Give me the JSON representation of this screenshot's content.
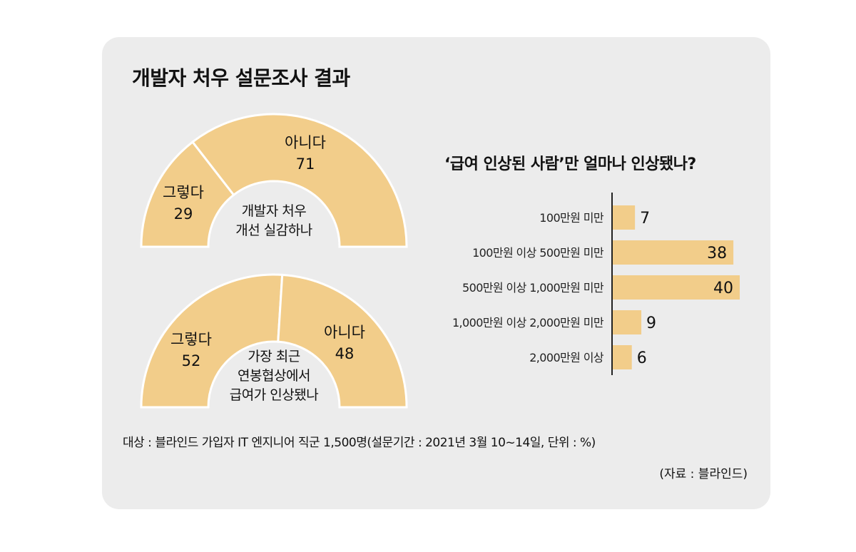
{
  "title": "개발자 처우 설문조사 결과",
  "colors": {
    "bar": "#f2cd8a",
    "panel": "#ececec",
    "axis": "#222222"
  },
  "footnote": "대상 : 블라인드 가입자 IT 엔지니어 직군 1,500명(설문기간 : 2021년 3월 10~14일, 단위 : %)",
  "source": "(자료 : 블라인드)",
  "chart_data": [
    {
      "type": "pie",
      "question_line1": "개발자 처우",
      "question_line2": "개선 실감하나",
      "slices": [
        {
          "label": "그렇다",
          "value": 29
        },
        {
          "label": "아니다",
          "value": 71
        }
      ]
    },
    {
      "type": "pie",
      "question_line1": "가장 최근",
      "question_line2": "연봉협상에서",
      "question_line3": "급여가 인상됐나",
      "slices": [
        {
          "label": "그렇다",
          "value": 52
        },
        {
          "label": "아니다",
          "value": 48
        }
      ]
    },
    {
      "type": "bar",
      "orientation": "horizontal",
      "title": "‘급여 인상된 사람’만 얼마나 인상됐나?",
      "categories": [
        "100만원 미만",
        "100만원 이상 500만원 미만",
        "500만원 이상 1,000만원 미만",
        "1,000만원 이상 2,000만원 미만",
        "2,000만원 이상"
      ],
      "values": [
        7,
        38,
        40,
        9,
        6
      ],
      "xlim": [
        0,
        40
      ]
    }
  ]
}
